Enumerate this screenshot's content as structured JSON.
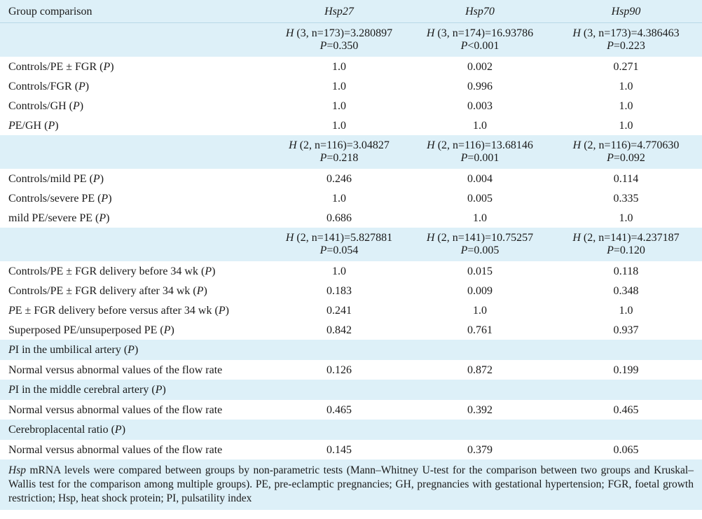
{
  "header": {
    "group": "Group comparison",
    "cols": [
      "Hsp27",
      "Hsp70",
      "Hsp90"
    ]
  },
  "rows": [
    {
      "type": "stat",
      "cells": [
        {
          "l1": "H (3, n=173)=3.280897",
          "l2": "P=0.350"
        },
        {
          "l1": "H (3, n=174)=16.93786",
          "l2": "P<0.001"
        },
        {
          "l1": "H (3, n=173)=4.386463",
          "l2": "P=0.223"
        }
      ]
    },
    {
      "type": "row",
      "label": "Controls/PE ± FGR (P)",
      "values": [
        "1.0",
        "0.002",
        "0.271"
      ]
    },
    {
      "type": "row",
      "label": "Controls/FGR (P)",
      "values": [
        "1.0",
        "0.996",
        "1.0"
      ]
    },
    {
      "type": "row",
      "label": "Controls/GH (P)",
      "values": [
        "1.0",
        "0.003",
        "1.0"
      ]
    },
    {
      "type": "row",
      "label": "PE/GH (P)",
      "values": [
        "1.0",
        "1.0",
        "1.0"
      ]
    },
    {
      "type": "stat",
      "cells": [
        {
          "l1": "H (2, n=116)=3.04827",
          "l2": "P=0.218"
        },
        {
          "l1": "H (2, n=116)=13.68146",
          "l2": "P=0.001"
        },
        {
          "l1": "H (2, n=116)=4.770630",
          "l2": "P=0.092"
        }
      ]
    },
    {
      "type": "row",
      "label": "Controls/mild PE (P)",
      "values": [
        "0.246",
        "0.004",
        "0.114"
      ]
    },
    {
      "type": "row",
      "label": "Controls/severe PE (P)",
      "values": [
        "1.0",
        "0.005",
        "0.335"
      ]
    },
    {
      "type": "row",
      "label": "mild PE/severe PE (P)",
      "values": [
        "0.686",
        "1.0",
        "1.0"
      ]
    },
    {
      "type": "stat",
      "cells": [
        {
          "l1": "H (2, n=141)=5.827881",
          "l2": "P=0.054"
        },
        {
          "l1": "H (2, n=141)=10.75257",
          "l2": "P=0.005"
        },
        {
          "l1": "H (2, n=141)=4.237187",
          "l2": "P=0.120"
        }
      ]
    },
    {
      "type": "row",
      "label": "Controls/PE ± FGR delivery before 34 wk (P)",
      "values": [
        "1.0",
        "0.015",
        "0.118"
      ]
    },
    {
      "type": "row",
      "label": "Controls/PE ± FGR delivery after 34 wk (P)",
      "values": [
        "0.183",
        "0.009",
        "0.348"
      ]
    },
    {
      "type": "row",
      "label": "PE ± FGR delivery before versus after 34 wk (P)",
      "values": [
        "0.241",
        "1.0",
        "1.0"
      ]
    },
    {
      "type": "row",
      "label": "Superposed PE/unsuperposed PE (P)",
      "values": [
        "0.842",
        "0.761",
        "0.937"
      ]
    },
    {
      "type": "sec",
      "label": "PI in the umbilical artery (P)"
    },
    {
      "type": "row",
      "label": "Normal versus abnormal values of the flow rate",
      "values": [
        "0.126",
        "0.872",
        "0.199"
      ]
    },
    {
      "type": "sec",
      "label": "PI in the middle cerebral artery (P)"
    },
    {
      "type": "row",
      "label": "Normal versus abnormal values of the flow rate",
      "values": [
        "0.465",
        "0.392",
        "0.465"
      ]
    },
    {
      "type": "sec",
      "label": "Cerebroplacental ratio (P)"
    },
    {
      "type": "row",
      "label": "Normal versus abnormal values of the flow rate",
      "values": [
        "0.145",
        "0.379",
        "0.065"
      ]
    }
  ],
  "footnote": {
    "lead": "Hsp",
    "text": " mRNA levels were compared between groups by non-parametric tests (Mann–Whitney U-test for the comparison between two groups and Kruskal–Wallis test for the comparison among multiple groups). PE, pre-eclamptic pregnancies; GH, pregnancies with gestational hypertension; FGR, foetal growth restriction; Hsp, heat shock protein; PI, pulsatility index"
  }
}
